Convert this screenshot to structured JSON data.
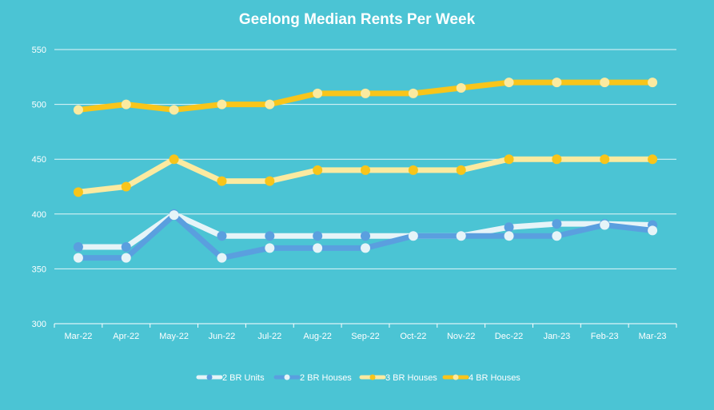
{
  "chart_data": {
    "type": "line",
    "title": "Geelong Median Rents Per Week",
    "xlabel": "",
    "ylabel": "",
    "categories": [
      "Mar-22",
      "Apr-22",
      "May-22",
      "Jun-22",
      "Jul-22",
      "Aug-22",
      "Sep-22",
      "Oct-22",
      "Nov-22",
      "Dec-22",
      "Jan-23",
      "Feb-23",
      "Mar-23"
    ],
    "ylim": [
      300,
      550
    ],
    "yticks": [
      300,
      350,
      400,
      450,
      500,
      550
    ],
    "grid": true,
    "legend_position": "bottom",
    "series": [
      {
        "name": "2 BR Units",
        "values": [
          370,
          370,
          400,
          380,
          380,
          380,
          380,
          380,
          380,
          388,
          391,
          391,
          390
        ],
        "line_color": "#E6F4F8",
        "marker_color": "#5A9FDF"
      },
      {
        "name": "2 BR Houses",
        "values": [
          360,
          360,
          399,
          360,
          369,
          369,
          369,
          380,
          380,
          380,
          380,
          390,
          385
        ],
        "line_color": "#5A9FDF",
        "marker_color": "#E6F4F8"
      },
      {
        "name": "3 BR Houses",
        "values": [
          420,
          425,
          450,
          430,
          430,
          440,
          440,
          440,
          440,
          450,
          450,
          450,
          450
        ],
        "line_color": "#FBEAA0",
        "marker_color": "#F8C51A"
      },
      {
        "name": "4 BR Houses",
        "values": [
          495,
          500,
          495,
          500,
          500,
          510,
          510,
          510,
          515,
          520,
          520,
          520,
          520
        ],
        "line_color": "#F8C51A",
        "marker_color": "#FBEAA0"
      }
    ]
  },
  "colors": {
    "background": "#4BC4D4",
    "text": "#ffffff",
    "grid": "#ffffff"
  }
}
